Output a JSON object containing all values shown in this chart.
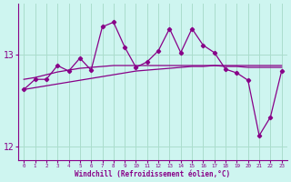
{
  "xlabel": "Windchill (Refroidissement éolien,°C)",
  "bg_color": "#cef5f0",
  "grid_color": "#aaddcc",
  "line_color": "#880088",
  "x": [
    0,
    1,
    2,
    3,
    4,
    5,
    6,
    7,
    8,
    9,
    10,
    11,
    12,
    13,
    14,
    15,
    16,
    17,
    18,
    19,
    20,
    21,
    22,
    23
  ],
  "jagged": [
    12.62,
    12.73,
    12.73,
    12.88,
    12.82,
    12.96,
    12.83,
    13.3,
    13.35,
    13.08,
    12.86,
    12.92,
    13.04,
    13.28,
    13.02,
    13.28,
    13.1,
    13.02,
    12.84,
    12.8,
    12.72,
    12.12,
    12.32,
    12.82
  ],
  "smooth_upper": [
    12.73,
    12.75,
    12.78,
    12.81,
    12.83,
    12.85,
    12.86,
    12.87,
    12.88,
    12.88,
    12.88,
    12.88,
    12.88,
    12.88,
    12.88,
    12.88,
    12.88,
    12.88,
    12.87,
    12.87,
    12.86,
    12.86,
    12.86,
    12.86
  ],
  "smooth_lower": [
    12.62,
    12.64,
    12.66,
    12.68,
    12.7,
    12.72,
    12.74,
    12.76,
    12.78,
    12.8,
    12.82,
    12.83,
    12.84,
    12.85,
    12.86,
    12.87,
    12.87,
    12.88,
    12.88,
    12.88,
    12.88,
    12.88,
    12.88,
    12.88
  ],
  "ylim": [
    11.85,
    13.55
  ],
  "yticks": [
    12,
    13
  ],
  "xlim": [
    -0.5,
    23.5
  ]
}
